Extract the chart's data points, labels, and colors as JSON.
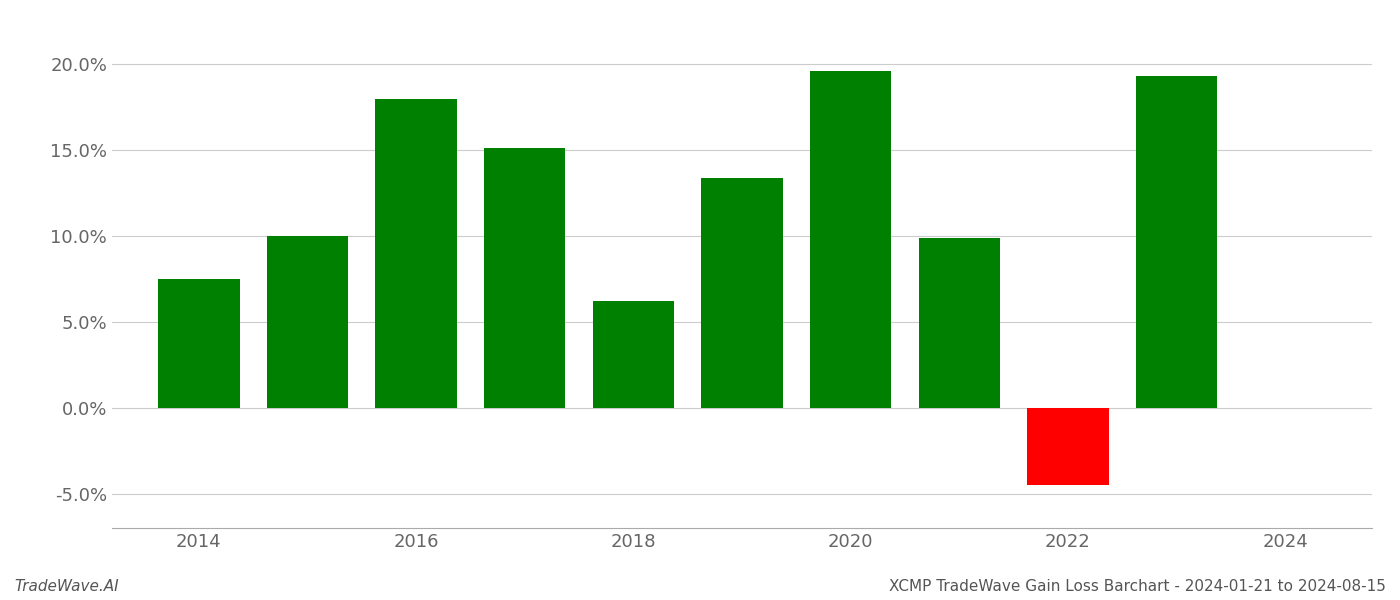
{
  "years": [
    2014,
    2015,
    2016,
    2017,
    2018,
    2019,
    2020,
    2021,
    2022,
    2023
  ],
  "values": [
    0.075,
    0.1,
    0.18,
    0.151,
    0.062,
    0.134,
    0.196,
    0.099,
    -0.045,
    0.193
  ],
  "bar_colors": [
    "#008000",
    "#008000",
    "#008000",
    "#008000",
    "#008000",
    "#008000",
    "#008000",
    "#008000",
    "#ff0000",
    "#008000"
  ],
  "ylabel": "",
  "xlabel": "",
  "ylim": [
    -0.07,
    0.22
  ],
  "yticks": [
    -0.05,
    0.0,
    0.05,
    0.1,
    0.15,
    0.2
  ],
  "xticks": [
    2014,
    2016,
    2018,
    2020,
    2022,
    2024
  ],
  "xlim": [
    2013.2,
    2024.8
  ],
  "watermark_left": "TradeWave.AI",
  "watermark_right": "XCMP TradeWave Gain Loss Barchart - 2024-01-21 to 2024-08-15",
  "background_color": "#ffffff",
  "grid_color": "#cccccc",
  "bar_width": 0.75,
  "tick_fontsize": 13,
  "watermark_fontsize": 11
}
